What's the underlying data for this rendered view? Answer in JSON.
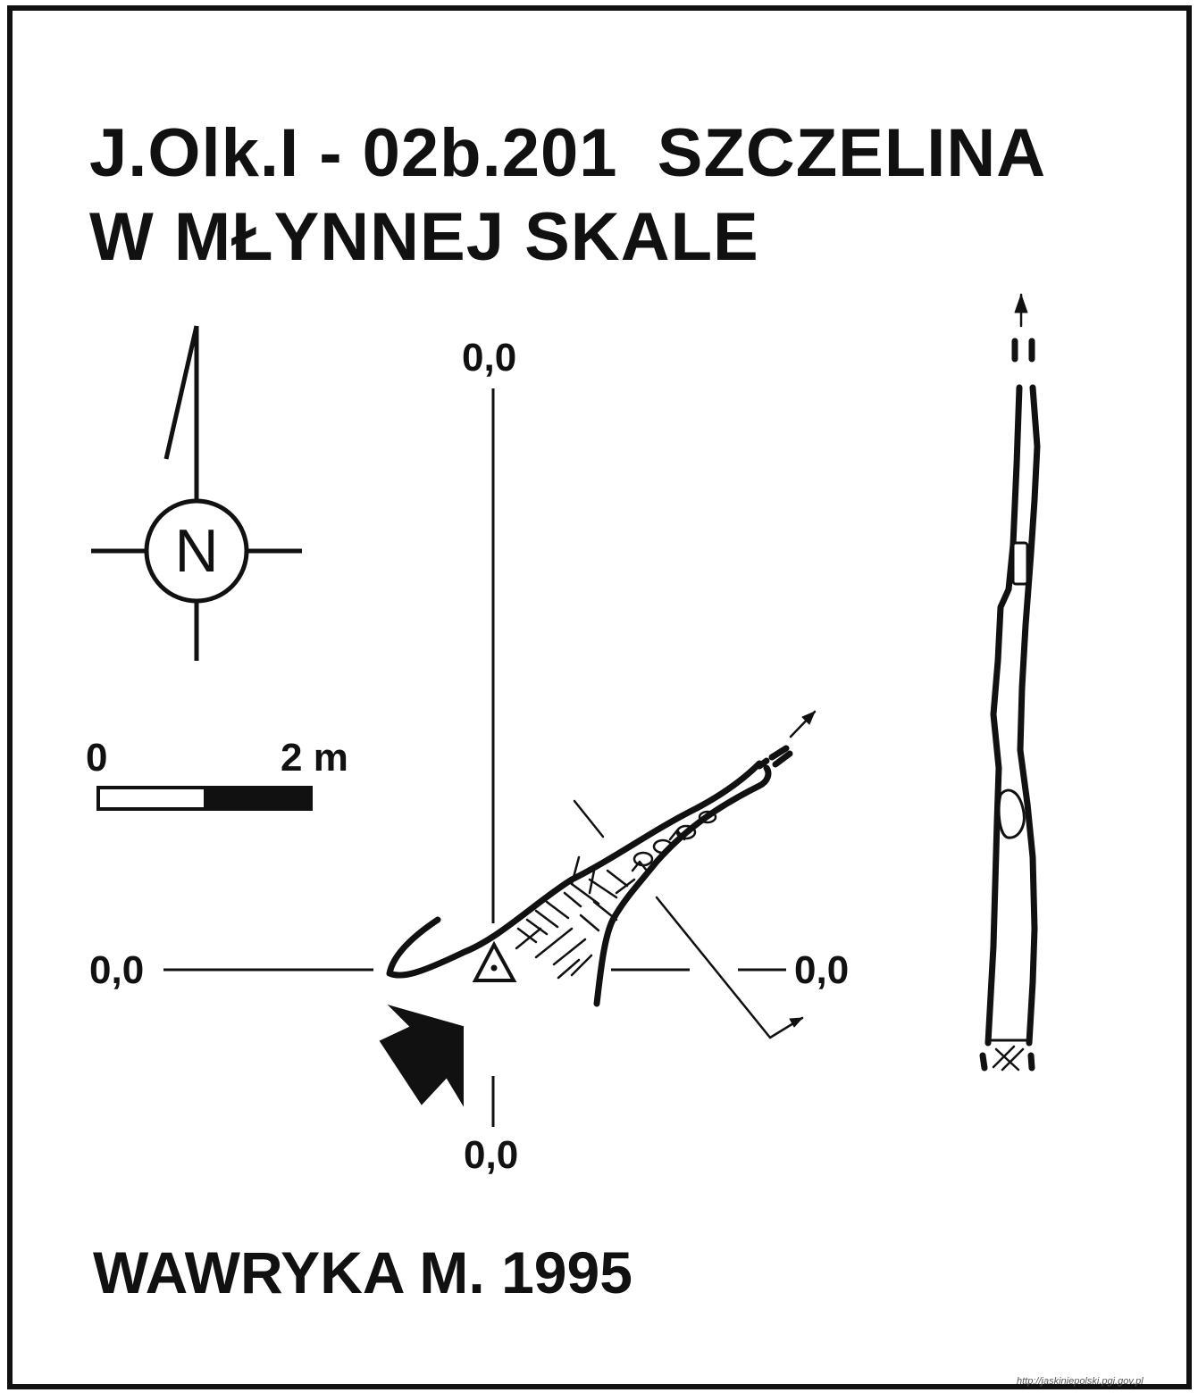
{
  "title": {
    "line1": "J.Olk.I - 02b.201  SZCZELINA",
    "line2": "W MŁYNNEJ SKALE"
  },
  "compass": {
    "letter": "N",
    "icon": "north-arrow-icon"
  },
  "scale_bar": {
    "start_label": "0",
    "end_label": "2 m",
    "length_m": 2
  },
  "reference_axes": {
    "top_label": "0,0",
    "left_label": "0,0",
    "right_label": "0,0",
    "bottom_label": "0,0"
  },
  "entrance_marker": {
    "icon": "entrance-arrow-icon"
  },
  "datum_marker": {
    "icon": "survey-station-triangle-icon"
  },
  "author": "WAWRYKA M. 1995",
  "source": "http://jaskiniepolski.pgi.gov.pl",
  "colors": {
    "ink": "#111111",
    "paper": "#ffffff"
  }
}
